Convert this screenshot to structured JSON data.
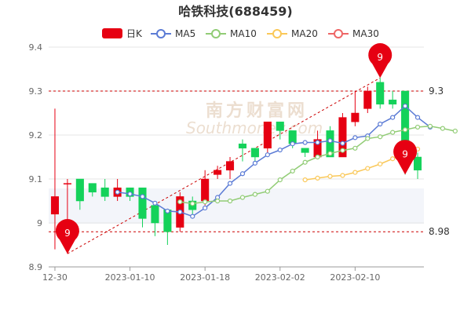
{
  "chart_data": {
    "type": "candlestick",
    "title": "哈铁科技(688459)",
    "legend": [
      {
        "name": "日K",
        "color": "#e60012",
        "kind": "candle"
      },
      {
        "name": "MA5",
        "color": "#5b7bd5",
        "kind": "line"
      },
      {
        "name": "MA10",
        "color": "#91cc75",
        "kind": "line"
      },
      {
        "name": "MA20",
        "color": "#fac858",
        "kind": "line"
      },
      {
        "name": "MA30",
        "color": "#ee6666",
        "kind": "line"
      }
    ],
    "legend_position": "top-center",
    "ylim": [
      8.9,
      9.4
    ],
    "y_ticks": [
      "8.9",
      "9",
      "9.1",
      "9.2",
      "9.3",
      "9.4"
    ],
    "x_ticks": [
      {
        "label": "12-30",
        "index": 0
      },
      {
        "label": "2023-01-10",
        "index": 6
      },
      {
        "label": "2023-01-18",
        "index": 12
      },
      {
        "label": "2023-02-02",
        "index": 18
      },
      {
        "label": "2023-02-10",
        "index": 24
      }
    ],
    "grid": true,
    "up_color": "#e60012",
    "down_color": "#14d25a",
    "candles": [
      {
        "open": 9.02,
        "close": 9.06,
        "low": 8.94,
        "high": 9.26
      },
      {
        "open": 9.09,
        "close": 9.09,
        "low": 8.93,
        "high": 9.1
      },
      {
        "open": 9.1,
        "close": 9.05,
        "low": 9.03,
        "high": 9.1
      },
      {
        "open": 9.09,
        "close": 9.07,
        "low": 9.06,
        "high": 9.09
      },
      {
        "open": 9.08,
        "close": 9.06,
        "low": 9.05,
        "high": 9.1
      },
      {
        "open": 9.06,
        "close": 9.08,
        "low": 9.05,
        "high": 9.1
      },
      {
        "open": 9.08,
        "close": 9.06,
        "low": 9.05,
        "high": 9.08
      },
      {
        "open": 9.08,
        "close": 9.01,
        "low": 8.99,
        "high": 9.08
      },
      {
        "open": 9.04,
        "close": 9.0,
        "low": 8.97,
        "high": 9.04
      },
      {
        "open": 9.03,
        "close": 8.98,
        "low": 8.95,
        "high": 9.03
      },
      {
        "open": 8.99,
        "close": 9.06,
        "low": 8.98,
        "high": 9.07
      },
      {
        "open": 9.05,
        "close": 9.03,
        "low": 9.02,
        "high": 9.06
      },
      {
        "open": 9.05,
        "close": 9.1,
        "low": 9.04,
        "high": 9.12
      },
      {
        "open": 9.11,
        "close": 9.12,
        "low": 9.1,
        "high": 9.13
      },
      {
        "open": 9.12,
        "close": 9.14,
        "low": 9.1,
        "high": 9.15
      },
      {
        "open": 9.18,
        "close": 9.17,
        "low": 9.14,
        "high": 9.19
      },
      {
        "open": 9.17,
        "close": 9.15,
        "low": 9.14,
        "high": 9.17
      },
      {
        "open": 9.17,
        "close": 9.23,
        "low": 9.16,
        "high": 9.23
      },
      {
        "open": 9.23,
        "close": 9.21,
        "low": 9.19,
        "high": 9.23
      },
      {
        "open": 9.21,
        "close": 9.18,
        "low": 9.17,
        "high": 9.21
      },
      {
        "open": 9.17,
        "close": 9.16,
        "low": 9.15,
        "high": 9.17
      },
      {
        "open": 9.15,
        "close": 9.19,
        "low": 9.15,
        "high": 9.21
      },
      {
        "open": 9.21,
        "close": 9.15,
        "low": 9.15,
        "high": 9.22
      },
      {
        "open": 9.15,
        "close": 9.24,
        "low": 9.15,
        "high": 9.25
      },
      {
        "open": 9.23,
        "close": 9.25,
        "low": 9.22,
        "high": 9.3
      },
      {
        "open": 9.26,
        "close": 9.3,
        "low": 9.25,
        "high": 9.31
      },
      {
        "open": 9.32,
        "close": 9.27,
        "low": 9.26,
        "high": 9.33
      },
      {
        "open": 9.28,
        "close": 9.27,
        "low": 9.26,
        "high": 9.3
      },
      {
        "open": 9.3,
        "close": 9.13,
        "low": 9.11,
        "high": 9.3
      },
      {
        "open": 9.15,
        "close": 9.12,
        "low": 9.1,
        "high": 9.16
      }
    ],
    "ma_series": [
      {
        "name": "MA5",
        "color": "#5b7bd5",
        "start": 5,
        "values": [
          9.07,
          9.066,
          9.06,
          9.045,
          9.027,
          9.025,
          9.015,
          9.034,
          9.058,
          9.09,
          9.112,
          9.136,
          9.155,
          9.166,
          9.18,
          9.183,
          9.183,
          9.187,
          9.181,
          9.194,
          9.198,
          9.225,
          9.24,
          9.266,
          9.24,
          9.218
        ]
      },
      {
        "name": "MA10",
        "color": "#91cc75",
        "start": 10,
        "values": [
          9.048,
          9.044,
          9.048,
          9.05,
          9.05,
          9.058,
          9.065,
          9.072,
          9.098,
          9.118,
          9.138,
          9.15,
          9.158,
          9.165,
          9.17,
          9.192,
          9.196,
          9.206,
          9.212,
          9.218,
          9.22,
          9.215,
          9.209
        ]
      },
      {
        "name": "MA20",
        "color": "#fac858",
        "start": 20,
        "values": [
          9.098,
          9.102,
          9.106,
          9.108,
          9.115,
          9.124,
          9.134,
          9.146,
          9.16,
          9.168
        ]
      }
    ],
    "reference_lines": [
      {
        "value": 9.3,
        "label": "9.3",
        "color": "#cc0000"
      },
      {
        "value": 8.98,
        "label": "8.98",
        "color": "#cc0000"
      }
    ],
    "markers": [
      {
        "label": "9",
        "index": 1,
        "value": 8.93
      },
      {
        "label": "9",
        "index": 26,
        "value": 9.33
      },
      {
        "label": "9",
        "index": 28,
        "value": 9.11
      }
    ],
    "trend_line": {
      "from_index": 1,
      "from_value": 8.93,
      "to_index": 26,
      "to_value": 9.33,
      "color": "#cc0000"
    }
  },
  "watermark": {
    "cn": "南方财富网",
    "en": "Southmoney.com"
  }
}
